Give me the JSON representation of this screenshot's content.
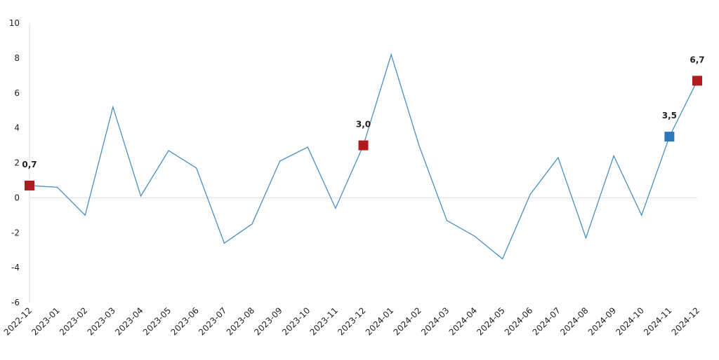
{
  "chart_data": {
    "type": "line",
    "categories": [
      "2022-12",
      "2023-01",
      "2023-02",
      "2023-03",
      "2023-04",
      "2023-05",
      "2023-06",
      "2023-07",
      "2023-08",
      "2023-09",
      "2023-10",
      "2023-11",
      "2023-12",
      "2024-01",
      "2024-02",
      "2024-03",
      "2024-04",
      "2024-05",
      "2024-06",
      "2024-07",
      "2024-08",
      "2024-09",
      "2024-10",
      "2024-11",
      "2024-12"
    ],
    "values": [
      0.7,
      0.6,
      -1.0,
      5.2,
      0.1,
      2.7,
      1.7,
      -2.6,
      -1.5,
      2.1,
      2.9,
      -0.6,
      3.0,
      8.2,
      3.0,
      -1.3,
      -2.2,
      -3.5,
      0.2,
      2.3,
      -2.3,
      2.4,
      -1.0,
      3.5,
      6.7
    ],
    "value_labels": [
      "0,7",
      null,
      null,
      null,
      null,
      null,
      null,
      null,
      null,
      null,
      null,
      null,
      "3,0",
      null,
      null,
      null,
      null,
      null,
      null,
      null,
      null,
      null,
      null,
      "3,5",
      "6,7"
    ],
    "marker_colors": [
      "#b11b1f",
      null,
      null,
      null,
      null,
      null,
      null,
      null,
      null,
      null,
      null,
      null,
      "#b11b1f",
      null,
      null,
      null,
      null,
      null,
      null,
      null,
      null,
      null,
      null,
      "#2e78b7",
      "#b11b1f"
    ],
    "color": "#4a8fc2",
    "ylim": [
      -6,
      10
    ],
    "yticks": [
      -6,
      -4,
      -2,
      0,
      2,
      4,
      6,
      8,
      10
    ]
  }
}
